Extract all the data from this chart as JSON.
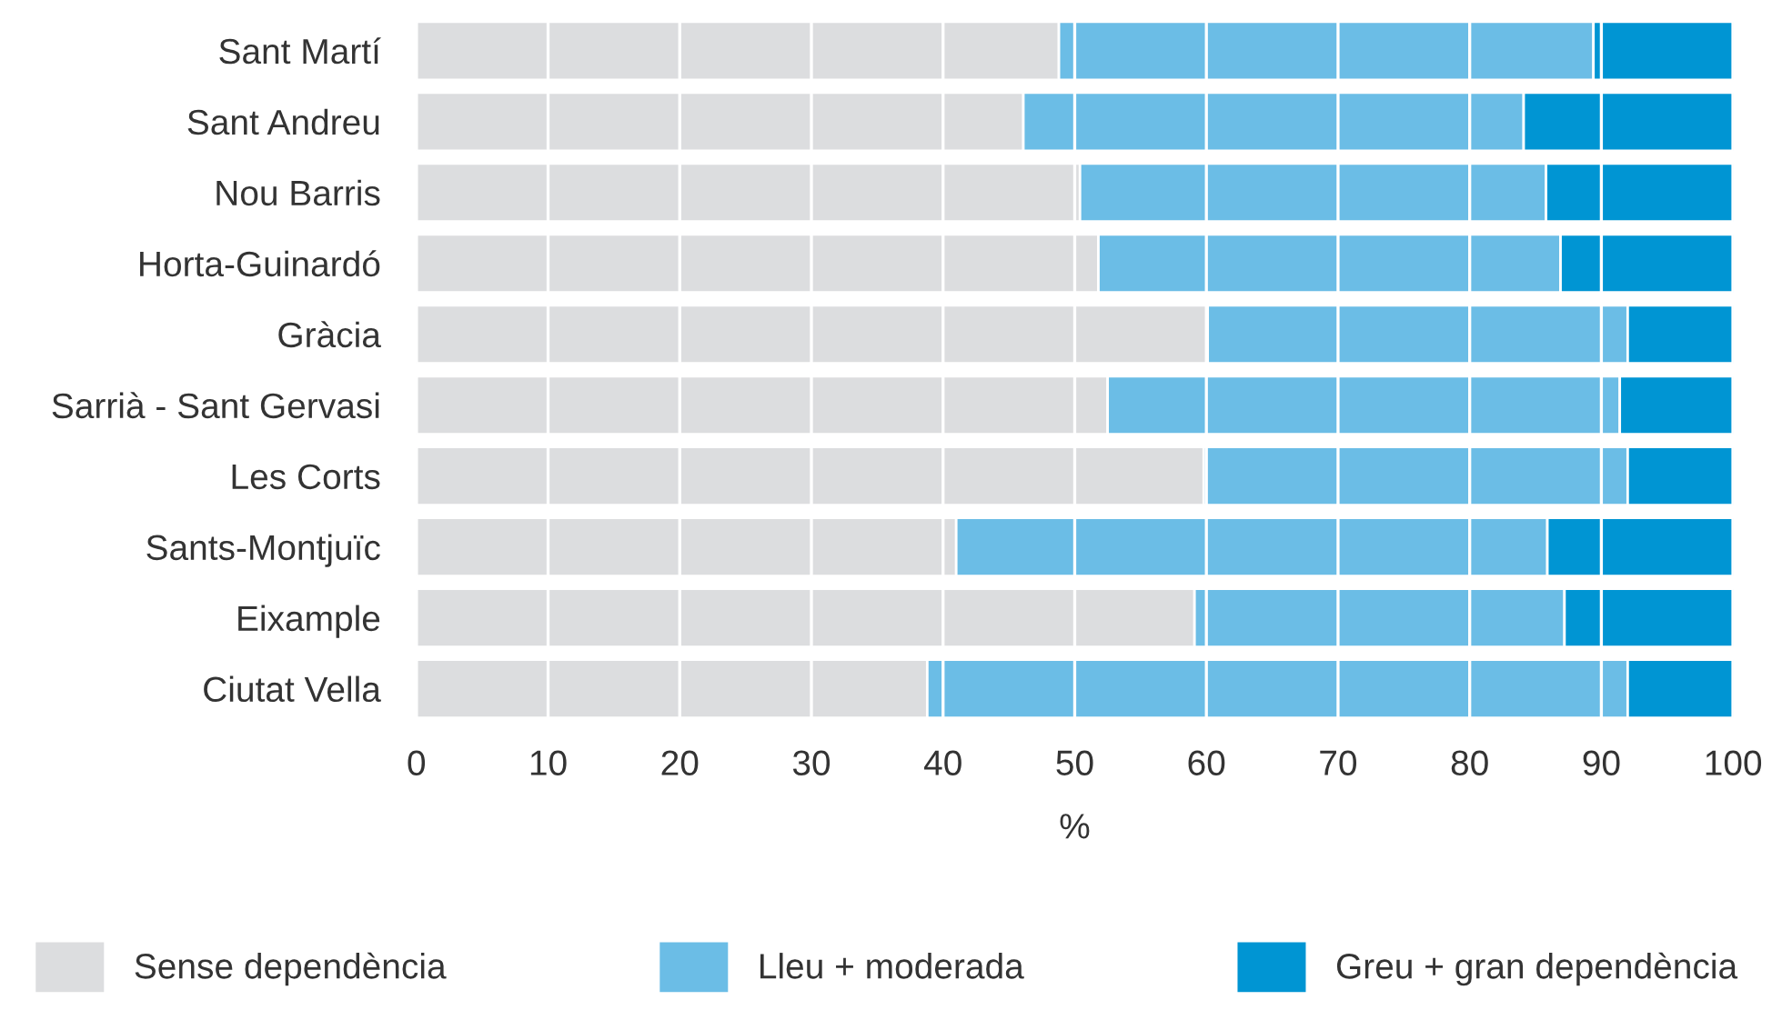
{
  "chart_data": {
    "type": "bar",
    "orientation": "horizontal",
    "stacked": true,
    "xlabel": "%",
    "categories": [
      "Sant Martí",
      "Sant Andreu",
      "Nou Barris",
      "Horta-Guinardó",
      "Gràcia",
      "Sarrià - Sant Gervasi",
      "Les Corts",
      "Sants-Montjuïc",
      "Eixample",
      "Ciutat Vella"
    ],
    "series": [
      {
        "name": "Sense dependència",
        "color": "#dcdddf",
        "values": [
          48.8,
          46.1,
          50.4,
          51.8,
          60.1,
          52.5,
          59.8,
          41.0,
          59.1,
          38.8
        ]
      },
      {
        "name": "Lleu + moderada",
        "color": "#6bbde6",
        "values": [
          40.6,
          38.0,
          35.4,
          35.1,
          31.9,
          38.9,
          32.2,
          44.9,
          28.1,
          53.2
        ]
      },
      {
        "name": "Greu + gran dependència",
        "color": "#0095d3",
        "values": [
          10.6,
          15.9,
          14.2,
          13.1,
          8.0,
          8.6,
          8.0,
          14.1,
          12.8,
          8.0
        ]
      }
    ],
    "xlim": [
      0,
      100
    ],
    "xticks": [
      0,
      10,
      20,
      30,
      40,
      50,
      60,
      70,
      80,
      90,
      100
    ],
    "grid": "x",
    "legend": "bottom"
  }
}
